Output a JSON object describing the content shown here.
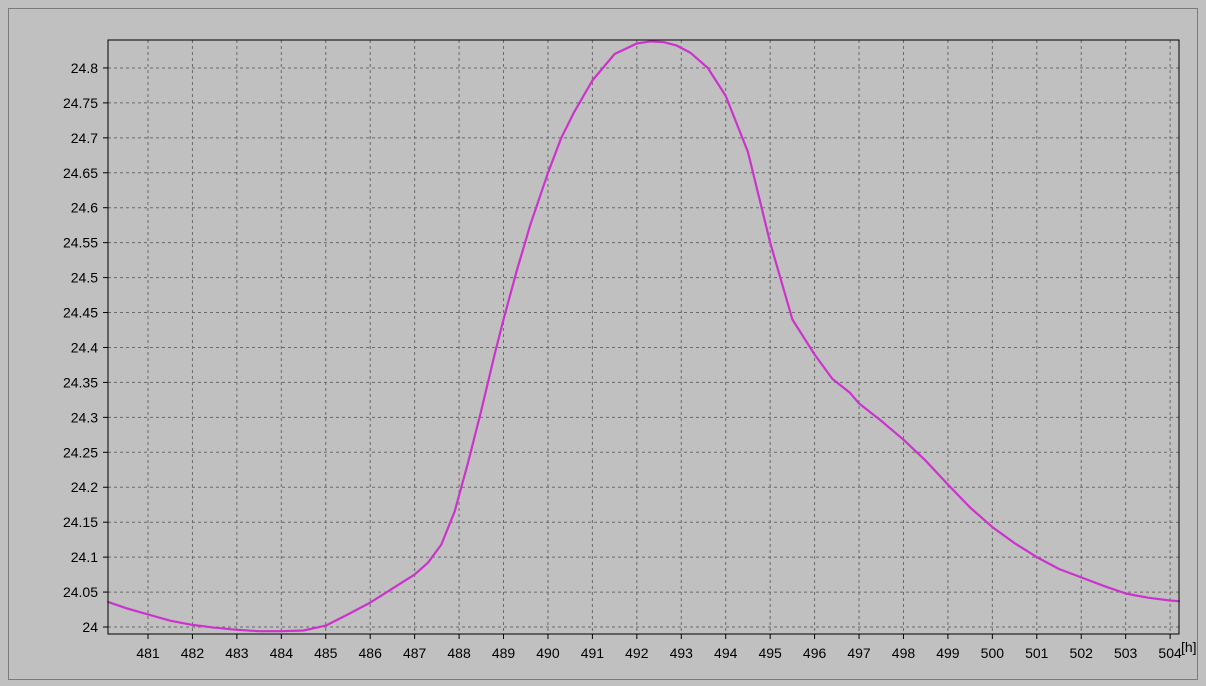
{
  "chart_data": {
    "type": "line",
    "title": "",
    "xlabel": "",
    "ylabel": "",
    "x_unit_label": "[h]",
    "xlim": [
      480.1,
      504.2
    ],
    "ylim": [
      23.99,
      24.84
    ],
    "x_ticks": [
      481,
      482,
      483,
      484,
      485,
      486,
      487,
      488,
      489,
      490,
      491,
      492,
      493,
      494,
      495,
      496,
      497,
      498,
      499,
      500,
      501,
      502,
      503,
      504
    ],
    "x_tick_labels": [
      "481",
      "482",
      "483",
      "484",
      "485",
      "486",
      "487",
      "488",
      "489",
      "490",
      "491",
      "492",
      "493",
      "494",
      "495",
      "496",
      "497",
      "498",
      "499",
      "500",
      "501",
      "502",
      "503",
      "504"
    ],
    "y_ticks": [
      24,
      24.05,
      24.1,
      24.15,
      24.2,
      24.25,
      24.3,
      24.35,
      24.4,
      24.45,
      24.5,
      24.55,
      24.6,
      24.65,
      24.7,
      24.75,
      24.8
    ],
    "y_tick_labels": [
      "24",
      "24.05",
      "24.1",
      "24.15",
      "24.2",
      "24.25",
      "24.3",
      "24.35",
      "24.4",
      "24.45",
      "24.5",
      "24.55",
      "24.6",
      "24.65",
      "24.7",
      "24.75",
      "24.8"
    ],
    "grid": true,
    "legend": "none",
    "series": [
      {
        "color": "#cc33cc",
        "x": [
          480.1,
          480.5,
          481,
          481.5,
          482,
          482.5,
          483,
          483.5,
          484,
          484.5,
          485,
          485.5,
          486,
          486.5,
          487,
          487.3,
          487.6,
          487.9,
          488.2,
          488.5,
          488.8,
          489,
          489.3,
          489.6,
          490,
          490.3,
          490.6,
          491,
          491.5,
          492,
          492.3,
          492.6,
          492.9,
          493.2,
          493.6,
          494,
          494.5,
          495,
          495.5,
          496,
          496.4,
          496.8,
          497,
          497.5,
          498,
          498.5,
          499,
          499.5,
          500,
          500.5,
          501,
          501.5,
          502,
          502.5,
          503,
          503.5,
          504,
          504.2
        ],
        "y": [
          24.036,
          24.027,
          24.018,
          24.009,
          24.003,
          23.999,
          23.996,
          23.994,
          23.994,
          23.995,
          24.002,
          24.018,
          24.035,
          24.055,
          24.075,
          24.092,
          24.118,
          24.165,
          24.235,
          24.31,
          24.39,
          24.44,
          24.51,
          24.575,
          24.65,
          24.7,
          24.738,
          24.782,
          24.82,
          24.835,
          24.838,
          24.837,
          24.832,
          24.822,
          24.8,
          24.76,
          24.68,
          24.55,
          24.44,
          24.39,
          24.355,
          24.335,
          24.32,
          24.295,
          24.268,
          24.238,
          24.204,
          24.171,
          24.143,
          24.12,
          24.1,
          24.083,
          24.071,
          24.059,
          24.048,
          24.042,
          24.038,
          24.037
        ]
      }
    ]
  }
}
